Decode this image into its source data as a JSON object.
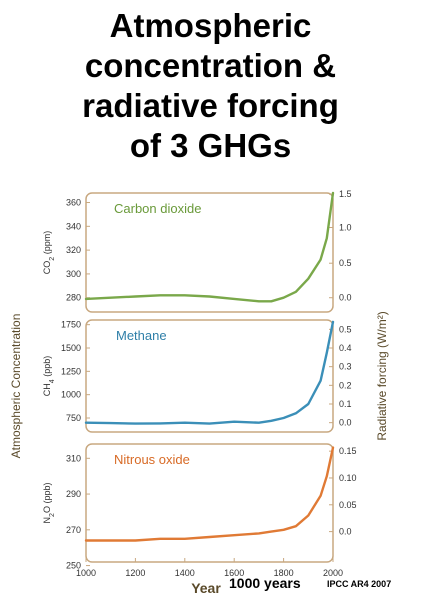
{
  "title_lines": [
    "Atmospheric",
    "concentration &",
    "radiative forcing",
    "of 3 GHGs"
  ],
  "footer": {
    "years_note": "1000 years",
    "citation": "IPCC AR4 2007"
  },
  "axes": {
    "left_label": "Atmospheric Concentration",
    "right_label": "Radiative forcing (W/m²)",
    "x_label": "Year",
    "x_ticks": [
      1000,
      1200,
      1400,
      1600,
      1800,
      2000
    ],
    "xlim": [
      1000,
      2000
    ]
  },
  "colors": {
    "co2": "#7aa84a",
    "ch4": "#3b8fb8",
    "n2o": "#e07a35",
    "frame": "#c8a880",
    "panel_title_co2": "#6a9a3a",
    "panel_title_ch4": "#2f7fa8",
    "panel_title_n2o": "#d86a25"
  },
  "chart_data": [
    {
      "type": "line",
      "title": "Carbon dioxide",
      "ylabel": "CO2 (ppm)",
      "ylim": [
        268,
        368
      ],
      "y_ticks": [
        280,
        300,
        320,
        340,
        360
      ],
      "right_label_ticks": [
        "0.0",
        "0.5",
        "1.0",
        "1.5"
      ],
      "right_tick_values": [
        280,
        309,
        339,
        367
      ],
      "series": [
        {
          "x": [
            1000,
            1100,
            1200,
            1300,
            1400,
            1500,
            1600,
            1700,
            1750,
            1800,
            1850,
            1900,
            1950,
            1975,
            2000
          ],
          "values": [
            279,
            280,
            281,
            282,
            282,
            281,
            279,
            277,
            277,
            280,
            285,
            296,
            312,
            330,
            368
          ]
        }
      ]
    },
    {
      "type": "line",
      "title": "Methane",
      "ylabel": "CH4 (ppb)",
      "ylim": [
        600,
        1800
      ],
      "y_ticks": [
        750,
        1000,
        1250,
        1500,
        1750
      ],
      "right_label_ticks": [
        "0.0",
        "0.1",
        "0.2",
        "0.3",
        "0.4",
        "0.5"
      ],
      "right_tick_values": [
        700,
        900,
        1100,
        1300,
        1500,
        1700
      ],
      "series": [
        {
          "x": [
            1000,
            1100,
            1200,
            1300,
            1400,
            1500,
            1600,
            1700,
            1750,
            1800,
            1850,
            1900,
            1950,
            1975,
            2000
          ],
          "values": [
            700,
            695,
            690,
            692,
            700,
            690,
            710,
            700,
            720,
            750,
            800,
            900,
            1150,
            1450,
            1780
          ]
        }
      ]
    },
    {
      "type": "line",
      "title": "Nitrous oxide",
      "ylabel": "N2O (ppb)",
      "ylim": [
        252,
        318
      ],
      "y_ticks": [
        250,
        270,
        290,
        310
      ],
      "right_label_ticks": [
        "0.0",
        "0.05",
        "0.10",
        "0.15"
      ],
      "right_tick_values": [
        269,
        284,
        299,
        314
      ],
      "series": [
        {
          "x": [
            1000,
            1100,
            1200,
            1300,
            1400,
            1500,
            1600,
            1700,
            1750,
            1800,
            1850,
            1900,
            1950,
            1975,
            2000
          ],
          "values": [
            264,
            264,
            264,
            265,
            265,
            266,
            267,
            268,
            269,
            270,
            272,
            278,
            289,
            300,
            316
          ]
        }
      ]
    }
  ]
}
